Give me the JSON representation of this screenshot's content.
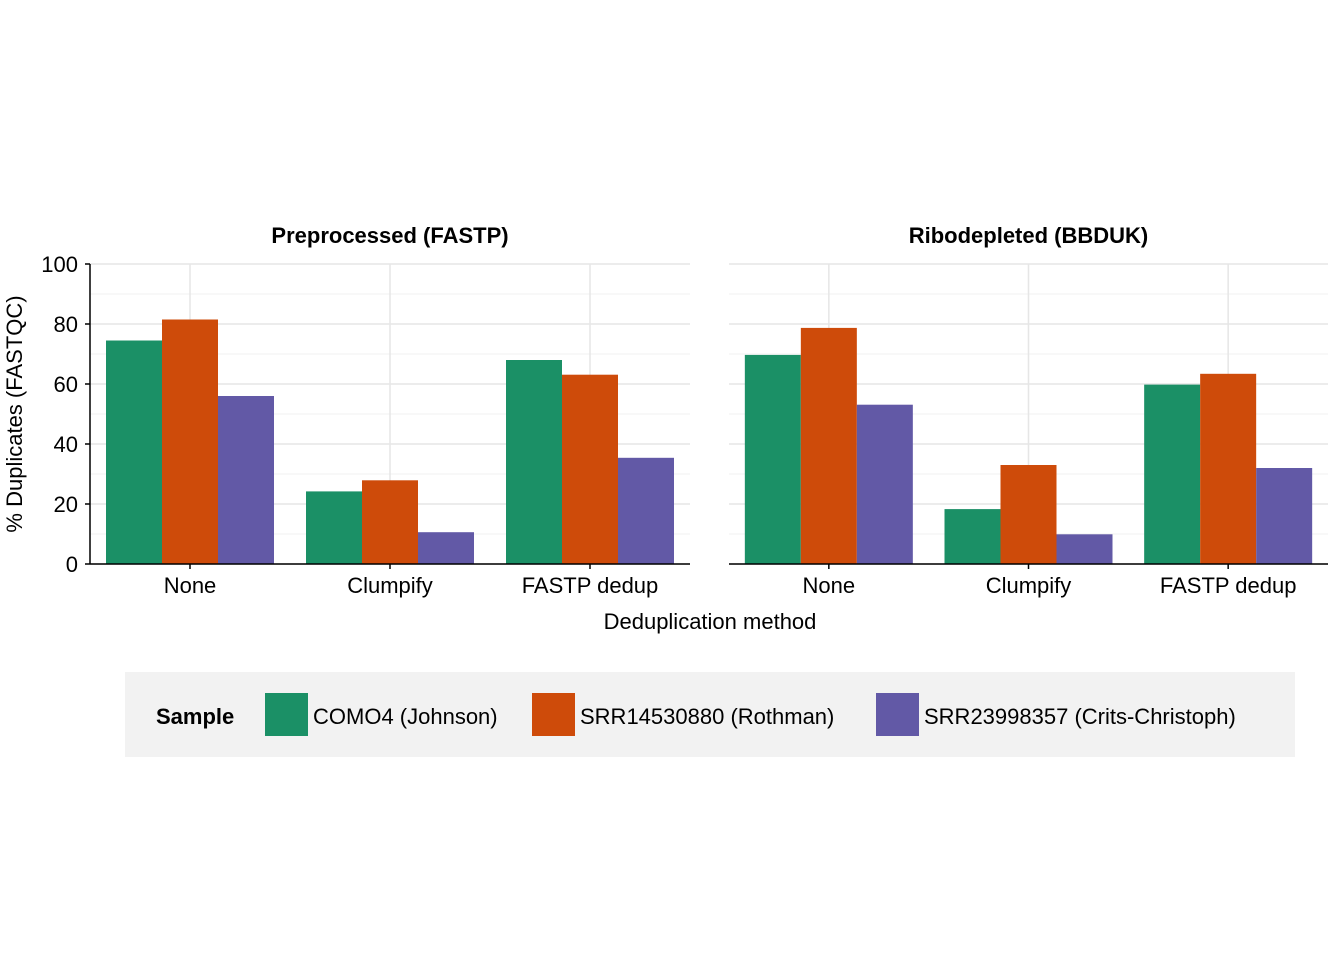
{
  "chart_data": {
    "type": "bar",
    "xlabel": "Deduplication method",
    "ylabel": "% Duplicates (FASTQC)",
    "ylim": [
      0,
      100
    ],
    "yticks": [
      0,
      20,
      40,
      60,
      80,
      100
    ],
    "grid": true,
    "categories": [
      "None",
      "Clumpify",
      "FASTP dedup"
    ],
    "legend": {
      "title": "Sample",
      "placement": "bottom",
      "entries": [
        {
          "name": "COMO4 (Johnson)",
          "color": "#1B9066"
        },
        {
          "name": "SRR14530880 (Rothman)",
          "color": "#CE4B0A"
        },
        {
          "name": "SRR23998357 (Crits-Christoph)",
          "color": "#6259A6"
        }
      ]
    },
    "panels": [
      {
        "title": "Preprocessed (FASTP)",
        "series": [
          {
            "name": "COMO4 (Johnson)",
            "values": [
              74.5,
              24.2,
              68.0
            ]
          },
          {
            "name": "SRR14530880 (Rothman)",
            "values": [
              81.5,
              27.9,
              63.1
            ]
          },
          {
            "name": "SRR23998357 (Crits-Christoph)",
            "values": [
              56.0,
              10.6,
              35.4
            ]
          }
        ]
      },
      {
        "title": "Ribodepleted (BBDUK)",
        "series": [
          {
            "name": "COMO4 (Johnson)",
            "values": [
              69.7,
              18.3,
              59.8
            ]
          },
          {
            "name": "SRR14530880 (Rothman)",
            "values": [
              78.7,
              33.0,
              63.4
            ]
          },
          {
            "name": "SRR23998357 (Crits-Christoph)",
            "values": [
              53.1,
              9.9,
              32.0
            ]
          }
        ]
      }
    ]
  }
}
